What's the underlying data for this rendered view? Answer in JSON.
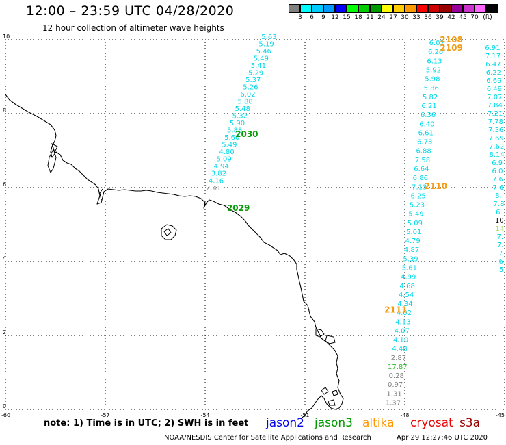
{
  "header": {
    "title": "12:00 – 23:59 UTC 04/28/2020",
    "subtitle": "12 hour collection of altimeter wave heights"
  },
  "legend": {
    "unit": "(ft)",
    "items": [
      {
        "label": "",
        "color": "#808080"
      },
      {
        "label": "3",
        "color": "#00ffff"
      },
      {
        "label": "6",
        "color": "#00ccff"
      },
      {
        "label": "9",
        "color": "#0099ff"
      },
      {
        "label": "12",
        "color": "#0000ff"
      },
      {
        "label": "15",
        "color": "#00ff00"
      },
      {
        "label": "18",
        "color": "#00cc00"
      },
      {
        "label": "21",
        "color": "#009900"
      },
      {
        "label": "24",
        "color": "#ffff00"
      },
      {
        "label": "27",
        "color": "#ffcc00"
      },
      {
        "label": "30",
        "color": "#ff9900"
      },
      {
        "label": "33",
        "color": "#ff0000"
      },
      {
        "label": "36",
        "color": "#cc0000"
      },
      {
        "label": "39",
        "color": "#990000"
      },
      {
        "label": "42",
        "color": "#990099"
      },
      {
        "label": "45",
        "color": "#cc33cc"
      },
      {
        "label": "70",
        "color": "#ff66ff"
      },
      {
        "label": "",
        "color": "#000000"
      }
    ]
  },
  "axes": {
    "x_ticks": [
      "-60",
      "-57",
      "-54",
      "-51",
      "-48",
      "-45"
    ],
    "y_ticks": [
      "10",
      "8",
      "6",
      "4",
      "2",
      "0"
    ],
    "x_range": [
      -60,
      -45
    ],
    "y_range": [
      0,
      10
    ]
  },
  "colors": {
    "cyan": "#00d8e8",
    "green": "#0a9b0a",
    "orange": "#f39c12",
    "gray": "#808080",
    "black": "#000000",
    "bright_green": "#22bb22",
    "pale_green": "#99dd66"
  },
  "tracks": [
    {
      "id": "track-a",
      "start": [
        -52.08,
        10.02
      ],
      "end": [
        -53.75,
        5.93
      ],
      "values": [
        {
          "v": "5.63",
          "c": "cyan"
        },
        {
          "v": "5.19",
          "c": "cyan"
        },
        {
          "v": "5.46",
          "c": "cyan"
        },
        {
          "v": "5.49",
          "c": "cyan"
        },
        {
          "v": "5.41",
          "c": "cyan"
        },
        {
          "v": "5.29",
          "c": "cyan"
        },
        {
          "v": "5.37",
          "c": "cyan"
        },
        {
          "v": "5.26",
          "c": "cyan"
        },
        {
          "v": "6.02",
          "c": "cyan"
        },
        {
          "v": "5.88",
          "c": "cyan"
        },
        {
          "v": "5.48",
          "c": "cyan"
        },
        {
          "v": "5.32",
          "c": "cyan"
        },
        {
          "v": "5.90",
          "c": "cyan"
        },
        {
          "v": "5.88",
          "c": "cyan"
        },
        {
          "v": "5.60",
          "c": "cyan"
        },
        {
          "v": "5.49",
          "c": "cyan"
        },
        {
          "v": "4.80",
          "c": "cyan"
        },
        {
          "v": "5.09",
          "c": "cyan"
        },
        {
          "v": "4.94",
          "c": "cyan"
        },
        {
          "v": "3.82",
          "c": "cyan"
        },
        {
          "v": "4.16",
          "c": "cyan"
        },
        {
          "v": "2.41",
          "c": "gray"
        }
      ]
    },
    {
      "id": "track-b",
      "start": [
        -47.04,
        9.85
      ],
      "end": [
        -48.35,
        0.12
      ],
      "values": [
        {
          "v": "6.02",
          "c": "cyan"
        },
        {
          "v": "6.26",
          "c": "cyan"
        },
        {
          "v": "6.13",
          "c": "cyan"
        },
        {
          "v": "5.92",
          "c": "cyan"
        },
        {
          "v": "5.98",
          "c": "cyan"
        },
        {
          "v": "5.86",
          "c": "cyan"
        },
        {
          "v": "5.82",
          "c": "cyan"
        },
        {
          "v": "6.21",
          "c": "cyan"
        },
        {
          "v": "6.36",
          "c": "cyan"
        },
        {
          "v": "6.40",
          "c": "cyan"
        },
        {
          "v": "6.61",
          "c": "cyan"
        },
        {
          "v": "6.73",
          "c": "cyan"
        },
        {
          "v": "6.88",
          "c": "cyan"
        },
        {
          "v": "7.58",
          "c": "cyan"
        },
        {
          "v": "6.64",
          "c": "cyan"
        },
        {
          "v": "6.86",
          "c": "cyan"
        },
        {
          "v": "7.13",
          "c": "cyan"
        },
        {
          "v": "6.25",
          "c": "cyan"
        },
        {
          "v": "5.23",
          "c": "cyan"
        },
        {
          "v": "5.49",
          "c": "cyan"
        },
        {
          "v": "5.09",
          "c": "cyan"
        },
        {
          "v": "5.01",
          "c": "cyan"
        },
        {
          "v": "4.79",
          "c": "cyan"
        },
        {
          "v": "4.87",
          "c": "cyan"
        },
        {
          "v": "5.39",
          "c": "cyan"
        },
        {
          "v": "5.61",
          "c": "cyan"
        },
        {
          "v": "4.99",
          "c": "cyan"
        },
        {
          "v": "4.68",
          "c": "cyan"
        },
        {
          "v": "4.54",
          "c": "cyan"
        },
        {
          "v": "4.34",
          "c": "cyan"
        },
        {
          "v": "4.02",
          "c": "cyan"
        },
        {
          "v": "4.13",
          "c": "cyan"
        },
        {
          "v": "4.07",
          "c": "cyan"
        },
        {
          "v": "4.10",
          "c": "cyan"
        },
        {
          "v": "4.48",
          "c": "cyan"
        },
        {
          "v": "2.87",
          "c": "gray"
        },
        {
          "v": "17.87",
          "c": "bright_green"
        },
        {
          "v": "0.28",
          "c": "gray"
        },
        {
          "v": "0.97",
          "c": "gray"
        },
        {
          "v": "1.31",
          "c": "gray"
        },
        {
          "v": "1.37",
          "c": "gray"
        }
      ]
    },
    {
      "id": "track-c",
      "start": [
        -45.36,
        9.72
      ],
      "end": [
        -45.1,
        3.72
      ],
      "values": [
        {
          "v": "6.91",
          "c": "cyan"
        },
        {
          "v": "7.17",
          "c": "cyan"
        },
        {
          "v": "6.47",
          "c": "cyan"
        },
        {
          "v": "6.22",
          "c": "cyan"
        },
        {
          "v": "6.69",
          "c": "cyan"
        },
        {
          "v": "6.49",
          "c": "cyan"
        },
        {
          "v": "7.07",
          "c": "cyan"
        },
        {
          "v": "7.84",
          "c": "cyan"
        },
        {
          "v": "7.21",
          "c": "cyan"
        },
        {
          "v": "7.78",
          "c": "cyan"
        },
        {
          "v": "7.36",
          "c": "cyan"
        },
        {
          "v": "7.69",
          "c": "cyan"
        },
        {
          "v": "7.62",
          "c": "cyan"
        },
        {
          "v": "8.14",
          "c": "cyan"
        },
        {
          "v": "6.9",
          "c": "cyan"
        },
        {
          "v": "6.0",
          "c": "cyan"
        },
        {
          "v": "7.6",
          "c": "cyan"
        },
        {
          "v": "7.6",
          "c": "cyan"
        },
        {
          "v": "8.",
          "c": "cyan"
        },
        {
          "v": "7.8",
          "c": "cyan"
        },
        {
          "v": "6.",
          "c": "cyan"
        },
        {
          "v": "10",
          "c": "black"
        },
        {
          "v": "14",
          "c": "pale_green"
        },
        {
          "v": "7.",
          "c": "cyan"
        },
        {
          "v": "7.",
          "c": "cyan"
        },
        {
          "v": "7",
          "c": "cyan"
        },
        {
          "v": "6",
          "c": "cyan"
        },
        {
          "v": "5",
          "c": "cyan"
        }
      ]
    }
  ],
  "time_labels": [
    {
      "text": "2030",
      "lon": -52.75,
      "lat": 7.37,
      "c": "green"
    },
    {
      "text": "2029",
      "lon": -53.0,
      "lat": 5.37,
      "c": "green"
    },
    {
      "text": "2108",
      "lon": -46.6,
      "lat": 9.93,
      "c": "orange"
    },
    {
      "text": "2109",
      "lon": -46.6,
      "lat": 9.7,
      "c": "orange"
    },
    {
      "text": "2110",
      "lon": -47.07,
      "lat": 5.96,
      "c": "orange"
    },
    {
      "text": "2111",
      "lon": -48.27,
      "lat": 2.62,
      "c": "orange"
    }
  ],
  "footer": {
    "note": "note:  1) Time is in UTC;  2) SWH is in feet",
    "satellites": [
      {
        "name": "jason2",
        "color": "#0000ee"
      },
      {
        "name": "jason3",
        "color": "#009900"
      },
      {
        "name": "altika",
        "color": "#ff9900"
      },
      {
        "name": "cryosat",
        "color": "#ee0000"
      },
      {
        "name": "s3a",
        "color": "#990000"
      }
    ],
    "credit": "NOAA/NESDIS Center for Satellite Applications and Research",
    "timestamp": "Apr 29 12:27:46 UTC 2020"
  }
}
